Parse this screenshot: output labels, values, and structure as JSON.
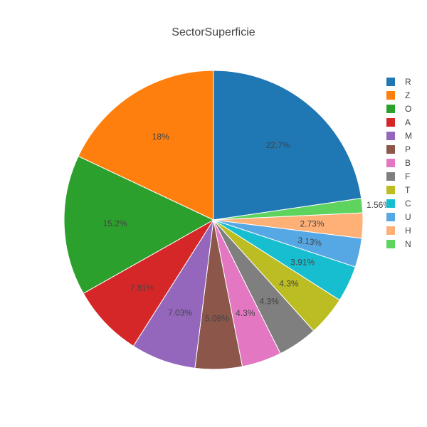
{
  "chart_data": {
    "type": "pie",
    "title": "SectorSuperficie",
    "direction": "clockwise",
    "start_angle": "12 o'clock",
    "legend_position": "right",
    "slices": [
      {
        "label": "R",
        "percent": 22.7,
        "text": "22.7%",
        "color": "#1f77b4"
      },
      {
        "label": "N",
        "percent": 1.56,
        "text": "1.56%",
        "color": "#5ed35e"
      },
      {
        "label": "H",
        "percent": 2.73,
        "text": "2.73%",
        "color": "#ffb077"
      },
      {
        "label": "U",
        "percent": 3.13,
        "text": "3.13%",
        "color": "#56a8e4"
      },
      {
        "label": "C",
        "percent": 3.91,
        "text": "3.91%",
        "color": "#17becf"
      },
      {
        "label": "T",
        "percent": 4.3,
        "text": "4.3%",
        "color": "#bcbd22"
      },
      {
        "label": "F",
        "percent": 4.3,
        "text": "4.3%",
        "color": "#7f7f7f"
      },
      {
        "label": "B",
        "percent": 4.3,
        "text": "4.3%",
        "color": "#e377c2"
      },
      {
        "label": "P",
        "percent": 5.08,
        "text": "5.08%",
        "color": "#8c564b"
      },
      {
        "label": "M",
        "percent": 7.03,
        "text": "7.03%",
        "color": "#9467bd"
      },
      {
        "label": "A",
        "percent": 7.81,
        "text": "7.81%",
        "color": "#d62728"
      },
      {
        "label": "O",
        "percent": 15.2,
        "text": "15.2%",
        "color": "#2ca02c"
      },
      {
        "label": "Z",
        "percent": 18,
        "text": "18%",
        "color": "#ff7f0e"
      }
    ],
    "legend": [
      "R",
      "Z",
      "O",
      "A",
      "M",
      "P",
      "B",
      "F",
      "T",
      "C",
      "U",
      "H",
      "N"
    ]
  }
}
